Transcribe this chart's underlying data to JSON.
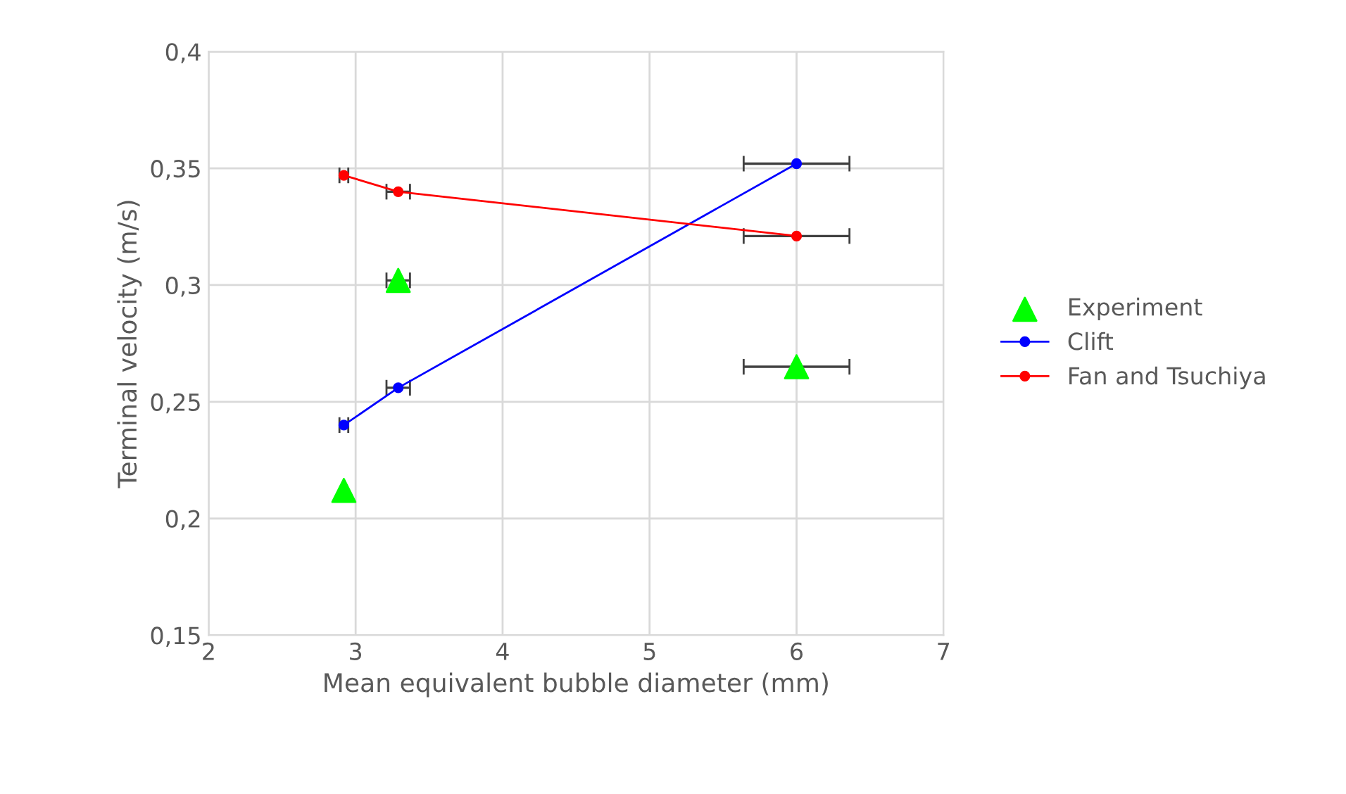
{
  "chart_data": {
    "type": "line",
    "xlabel": "Mean equivalent bubble diameter (mm)",
    "ylabel": "Terminal velocity (m/s)",
    "xlim": [
      2,
      7
    ],
    "xticks": [
      2,
      3,
      4,
      5,
      6,
      7
    ],
    "ylim": [
      0.15,
      0.4
    ],
    "yticks": [
      {
        "value": 0.15,
        "label": "0,15"
      },
      {
        "value": 0.2,
        "label": "0,2"
      },
      {
        "value": 0.25,
        "label": "0,25"
      },
      {
        "value": 0.3,
        "label": "0,3"
      },
      {
        "value": 0.35,
        "label": "0,35"
      },
      {
        "value": 0.4,
        "label": "0,4"
      }
    ],
    "grid": true,
    "legend": "right",
    "series": [
      {
        "name": "Experiment",
        "type": "scatter",
        "marker": "triangle",
        "color": "#00ff00",
        "x": [
          2.92,
          3.29,
          6.0
        ],
        "values": [
          0.212,
          0.302,
          0.265
        ],
        "xerrors": [
          null,
          0.08,
          0.36
        ]
      },
      {
        "name": "Clift",
        "marker": "circle",
        "color": "#0000ff",
        "x": [
          2.92,
          3.29,
          6.0
        ],
        "values": [
          0.24,
          0.256,
          0.352
        ],
        "xerrors": [
          0.03,
          0.08,
          0.36
        ]
      },
      {
        "name": "Fan and Tsuchiya",
        "marker": "circle",
        "color": "#ff0000",
        "x": [
          2.92,
          3.29,
          6.0
        ],
        "values": [
          0.347,
          0.34,
          0.321
        ],
        "xerrors": [
          0.03,
          0.08,
          0.36
        ]
      }
    ]
  }
}
